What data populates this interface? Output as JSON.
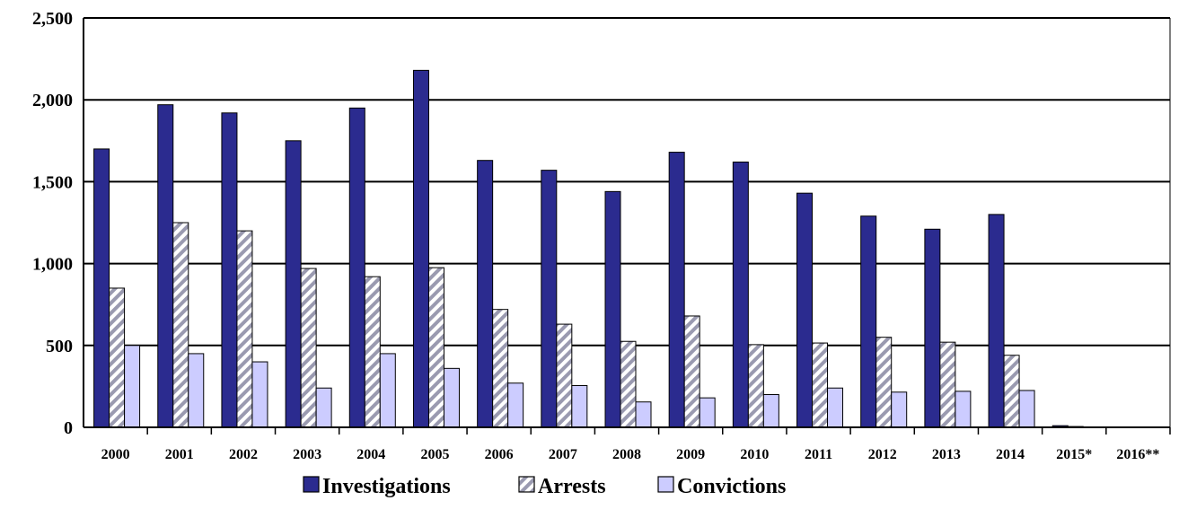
{
  "chart_data": {
    "type": "bar",
    "title": "",
    "xlabel": "",
    "ylabel": "",
    "ylim": [
      0,
      2500
    ],
    "yticks": [
      "0",
      "500",
      "1,000",
      "1,500",
      "2,000",
      "2,500"
    ],
    "yticks_values": [
      0,
      500,
      1000,
      1500,
      2000,
      2500
    ],
    "grid": true,
    "legend_position": "bottom",
    "categories": [
      "2000",
      "2001",
      "2002",
      "2003",
      "2004",
      "2005",
      "2006",
      "2007",
      "2008",
      "2009",
      "2010",
      "2011",
      "2012",
      "2013",
      "2014",
      "2015*",
      "2016**"
    ],
    "series": [
      {
        "name": "Investigations",
        "color": "#2b2b8f",
        "pattern": "solid",
        "values": [
          1700,
          1970,
          1920,
          1750,
          1950,
          2180,
          1630,
          1570,
          1440,
          1680,
          1620,
          1430,
          1290,
          1210,
          1300,
          10,
          0
        ]
      },
      {
        "name": "Arrests",
        "color": "#9a9ab0",
        "pattern": "hatch",
        "values": [
          850,
          1250,
          1200,
          970,
          920,
          975,
          720,
          630,
          525,
          680,
          505,
          515,
          550,
          520,
          440,
          5,
          0
        ]
      },
      {
        "name": "Convictions",
        "color": "#ccccff",
        "pattern": "solid",
        "values": [
          500,
          450,
          400,
          240,
          450,
          360,
          270,
          255,
          155,
          180,
          200,
          240,
          215,
          220,
          225,
          0,
          0
        ]
      }
    ]
  }
}
